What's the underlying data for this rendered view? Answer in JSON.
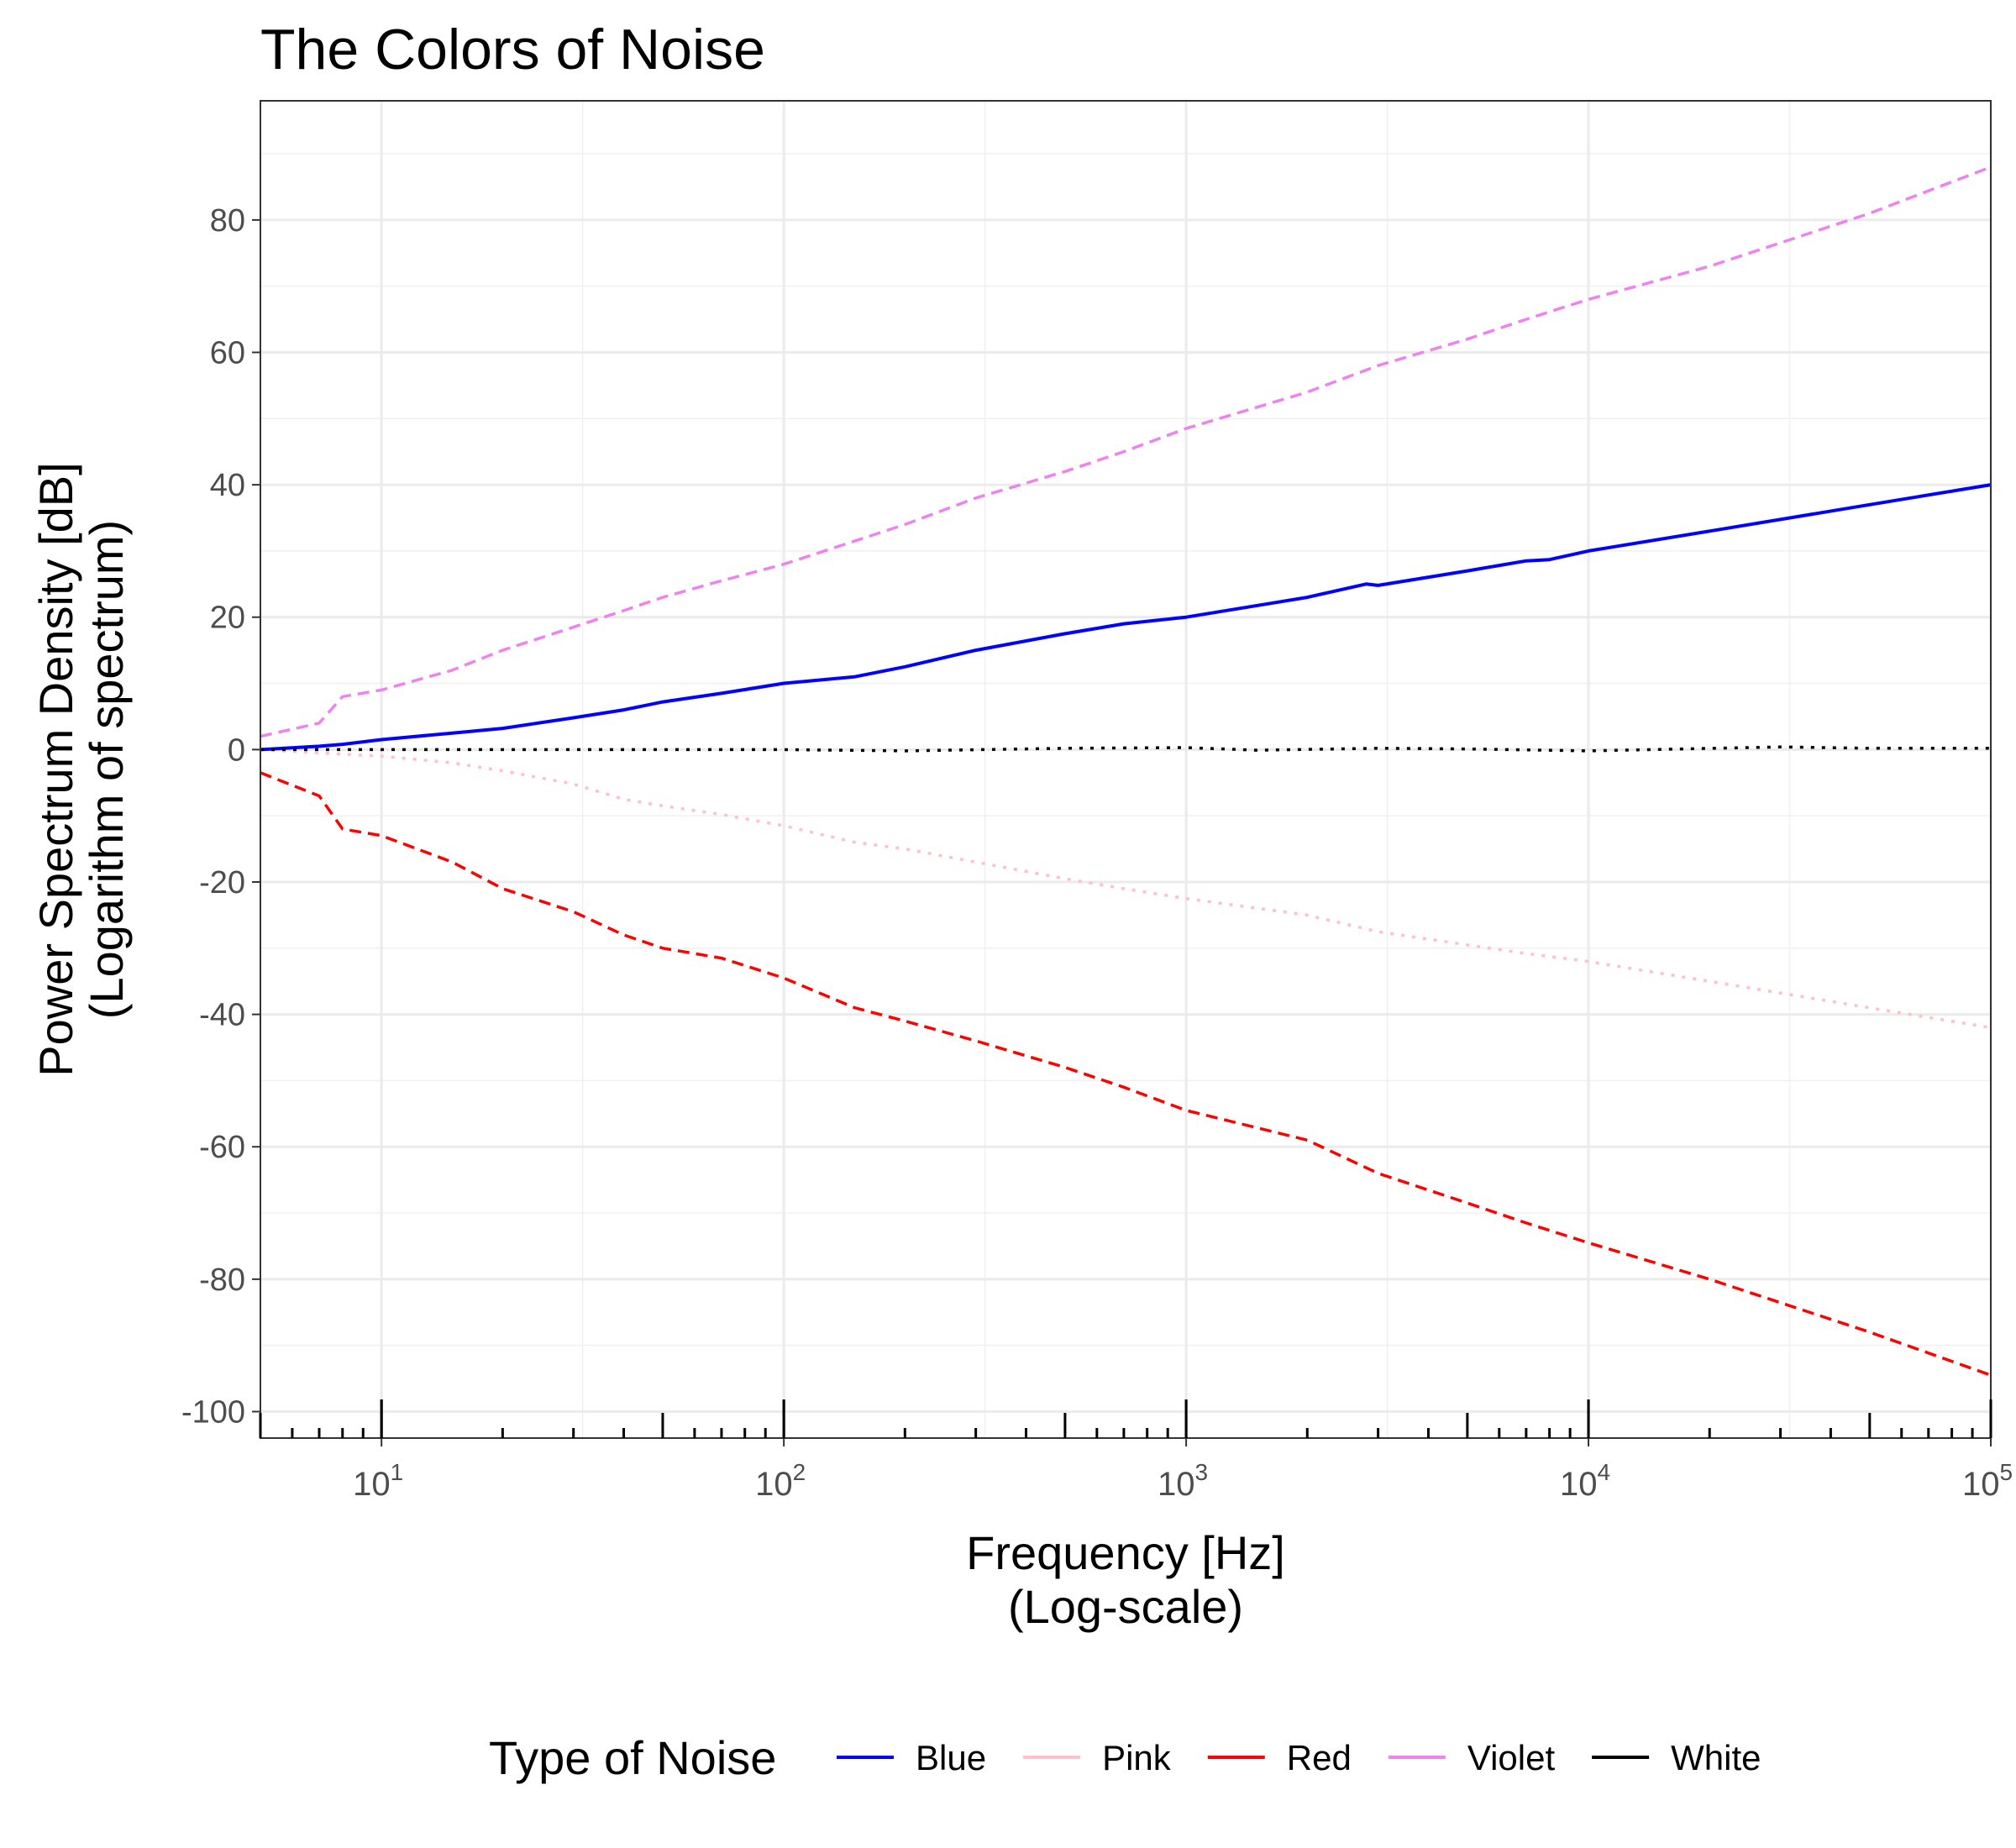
{
  "chart_data": {
    "type": "line",
    "title": "The Colors of Noise",
    "xlabel": [
      "Frequency [Hz]",
      "(Log-scale)"
    ],
    "ylabel": [
      "Power Spectrum Density [dB]",
      "(Logarithm of spectrum)"
    ],
    "xscale": "log10",
    "xlim": [
      5,
      100000
    ],
    "ylim": [
      -104,
      98
    ],
    "x_ticks": [
      10,
      100,
      1000,
      10000,
      100000
    ],
    "x_tick_labels": [
      {
        "base": "10",
        "exp": "1"
      },
      {
        "base": "10",
        "exp": "2"
      },
      {
        "base": "10",
        "exp": "3"
      },
      {
        "base": "10",
        "exp": "4"
      },
      {
        "base": "10",
        "exp": "5"
      }
    ],
    "y_ticks": [
      -100,
      -80,
      -60,
      -40,
      -20,
      0,
      20,
      40,
      60,
      80
    ],
    "y_tick_labels": [
      "-100",
      "-80",
      "-60",
      "-40",
      "-20",
      "0",
      "20",
      "40",
      "60",
      "80"
    ],
    "grid": true,
    "log_ticks": true,
    "legend": {
      "title": "Type of Noise",
      "position": "bottom"
    },
    "series": [
      {
        "name": "Blue",
        "color": "#0000ff",
        "linestyle": "solid",
        "x": [
          5,
          7,
          8,
          10,
          15,
          20,
          30,
          40,
          50,
          70,
          100,
          150,
          200,
          300,
          500,
          700,
          1000,
          2000,
          2800,
          3000,
          5000,
          7000,
          8000,
          10000,
          20000,
          50000,
          100000
        ],
        "y": [
          0,
          0.5,
          0.8,
          1.5,
          2.5,
          3.2,
          4.8,
          6.0,
          7.2,
          8.5,
          10.0,
          11.0,
          12.5,
          15.0,
          17.5,
          19.0,
          20.0,
          23.0,
          25.0,
          24.8,
          27.0,
          28.5,
          28.7,
          30.0,
          33.0,
          37.0,
          40.0
        ]
      },
      {
        "name": "Pink",
        "color": "#ffc0cb",
        "linestyle": "dotted",
        "x": [
          5,
          7,
          10,
          15,
          20,
          30,
          40,
          50,
          70,
          100,
          150,
          200,
          300,
          500,
          700,
          1000,
          2000,
          3000,
          5000,
          7000,
          10000,
          20000,
          50000,
          100000
        ],
        "y": [
          0,
          -0.5,
          -1.0,
          -2.0,
          -3.2,
          -5.2,
          -7.5,
          -8.5,
          -9.8,
          -11.5,
          -14.0,
          -15.0,
          -17.0,
          -19.5,
          -21.0,
          -22.5,
          -25.0,
          -27.5,
          -29.5,
          -30.8,
          -32.0,
          -35.0,
          -39.0,
          -42.0
        ]
      },
      {
        "name": "Red",
        "color": "#ff0000",
        "linestyle": "dashed",
        "x": [
          5,
          7,
          8,
          10,
          15,
          20,
          30,
          40,
          50,
          70,
          100,
          150,
          200,
          300,
          500,
          700,
          1000,
          2000,
          3000,
          5000,
          7000,
          10000,
          20000,
          50000,
          100000
        ],
        "y": [
          -3.5,
          -7.0,
          -12.0,
          -13.0,
          -17.0,
          -21.0,
          -24.5,
          -28.0,
          -30.0,
          -31.5,
          -34.5,
          -39.0,
          -41.0,
          -44.0,
          -48.0,
          -51.0,
          -54.5,
          -59.0,
          -64.0,
          -68.5,
          -71.5,
          -74.5,
          -80.0,
          -88.0,
          -94.5
        ]
      },
      {
        "name": "Violet",
        "color": "#ee82ee",
        "linestyle": "dashed",
        "x": [
          5,
          7,
          8,
          10,
          15,
          20,
          30,
          40,
          50,
          70,
          100,
          150,
          200,
          300,
          500,
          700,
          1000,
          2000,
          3000,
          5000,
          7000,
          10000,
          20000,
          50000,
          100000
        ],
        "y": [
          2.0,
          4.0,
          8.0,
          9.0,
          12.0,
          15.0,
          18.5,
          21.0,
          23.0,
          25.5,
          28.0,
          31.5,
          34.0,
          38.0,
          42.0,
          45.0,
          48.5,
          54.0,
          58.0,
          62.0,
          65.0,
          68.0,
          73.0,
          81.0,
          88.0
        ]
      },
      {
        "name": "White",
        "color": "#000000",
        "linestyle": "dotted",
        "x": [
          5,
          10,
          50,
          100,
          200,
          500,
          1000,
          1500,
          3000,
          5000,
          10000,
          30000,
          50000,
          100000
        ],
        "y": [
          0,
          0,
          0,
          0,
          -0.2,
          0.2,
          0.3,
          -0.1,
          0.2,
          0.1,
          -0.2,
          0.4,
          0.2,
          0.2
        ]
      }
    ]
  }
}
